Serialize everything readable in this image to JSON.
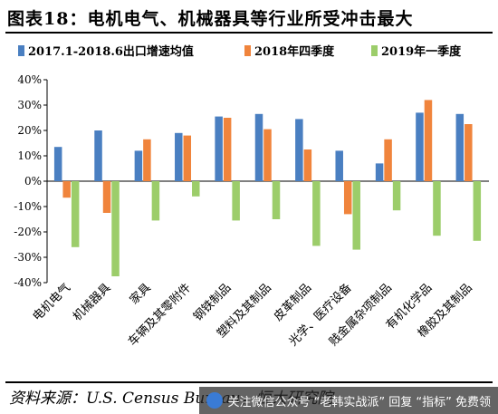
{
  "header": {
    "title": "图表18：电机电气、机械器具等行业所受冲击最大"
  },
  "footer": {
    "source": "资料来源：U.S. Census Bureau，恒大研究院"
  },
  "watermark": {
    "text": "关注微信公众号 “老韩实战派” 回复 “指标” 免费领"
  },
  "colors": {
    "series1": "#4a7fc1",
    "series2": "#f0843c",
    "series3": "#9ccd6a"
  },
  "chart_data": {
    "type": "bar",
    "title": "",
    "xlabel": "",
    "ylabel": "",
    "ylim": [
      -40,
      40
    ],
    "yticks": [
      -40,
      -30,
      -20,
      -10,
      0,
      10,
      20,
      30,
      40
    ],
    "ytick_labels": [
      "-40%",
      "-30%",
      "-20%",
      "-10%",
      "0%",
      "10%",
      "20%",
      "30%",
      "40%"
    ],
    "legend_position": "top",
    "grid": false,
    "categories": [
      "电机电气",
      "机械器具",
      "家具",
      "车辆及其零附件",
      "钢铁制品",
      "塑料及其制品",
      "皮革制品",
      "光学、医疗设备",
      "贱金属杂项制品",
      "有机化学品",
      "橡胶及其制品"
    ],
    "series": [
      {
        "name": "2017.1-2018.6出口增速均值",
        "values": [
          13.5,
          20,
          12,
          19,
          25.5,
          26.5,
          24.5,
          12,
          7,
          27,
          26.5
        ]
      },
      {
        "name": "2018年四季度",
        "values": [
          -6.5,
          -12.5,
          16.5,
          18,
          25,
          20.5,
          12.5,
          -13,
          16.5,
          32,
          22.5
        ]
      },
      {
        "name": "2019年一季度",
        "values": [
          -26,
          -37.5,
          -15.5,
          -6,
          -15.5,
          -15,
          -25.5,
          -27,
          -11.5,
          -21.5,
          -23.5
        ]
      }
    ]
  }
}
